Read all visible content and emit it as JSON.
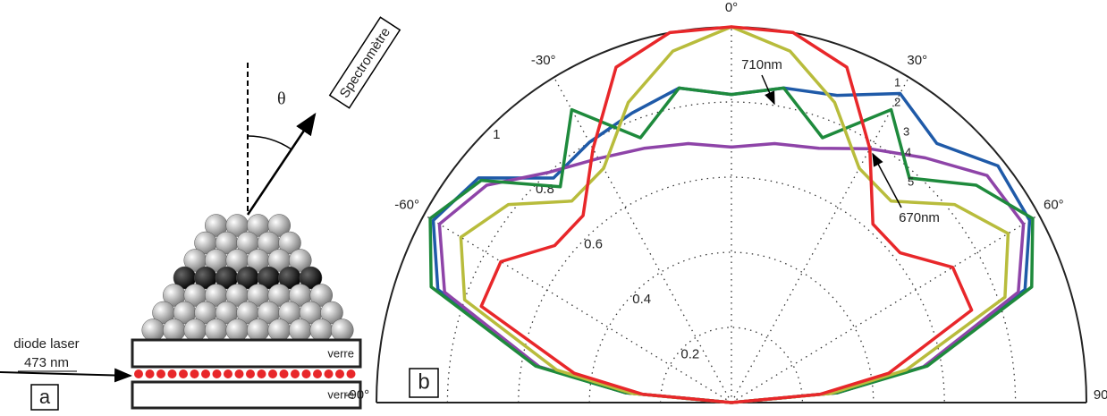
{
  "diagram": {
    "detector": "Spectromètre",
    "angle": "θ",
    "source": "diode laser",
    "wavelength": "473 nm",
    "glass_top": "verre",
    "glass_bottom": "verre",
    "panel": "a"
  },
  "chart_data": {
    "type": "polar_line",
    "panel": "b",
    "x": [
      -90,
      -85,
      -80,
      -70,
      -60,
      -50,
      -40,
      -30,
      -20,
      -10,
      0,
      10,
      20,
      30,
      40,
      50,
      60,
      70,
      80,
      85,
      90
    ],
    "thetalim": [
      -90,
      90
    ],
    "rlim": [
      0,
      1
    ],
    "thetaticks": [
      {
        "value": -90,
        "label": "-90°"
      },
      {
        "value": -60,
        "label": "-60°"
      },
      {
        "value": -30,
        "label": "-30°"
      },
      {
        "value": 0,
        "label": "0°"
      },
      {
        "value": 30,
        "label": "30°"
      },
      {
        "value": 60,
        "label": "60°"
      },
      {
        "value": 90,
        "label": "90°"
      }
    ],
    "rticks": [
      0.2,
      0.4,
      0.6,
      0.8,
      1
    ],
    "series": [
      {
        "name": "1",
        "color": "#1f5aa8",
        "values": [
          0,
          0.3,
          0.55,
          0.88,
          0.97,
          0.93,
          0.78,
          0.8,
          0.82,
          0.85,
          0.82,
          0.85,
          0.87,
          0.95,
          0.9,
          0.98,
          0.97,
          0.88,
          0.55,
          0.3,
          0
        ]
      },
      {
        "name": "2",
        "color": "#8e44a8",
        "values": [
          0,
          0.3,
          0.55,
          0.86,
          0.95,
          0.9,
          0.8,
          0.75,
          0.72,
          0.7,
          0.68,
          0.7,
          0.72,
          0.78,
          0.85,
          0.94,
          0.95,
          0.86,
          0.55,
          0.3,
          0
        ]
      },
      {
        "name": "3",
        "color": "#1e8a3c",
        "values": [
          0,
          0.3,
          0.56,
          0.9,
          0.98,
          0.92,
          0.75,
          0.9,
          0.75,
          0.85,
          0.82,
          0.85,
          0.75,
          0.9,
          0.78,
          0.9,
          0.98,
          0.9,
          0.56,
          0.3,
          0
        ]
      },
      {
        "name": "4",
        "color": "#b8bc3c",
        "values": [
          0,
          0.28,
          0.5,
          0.8,
          0.88,
          0.82,
          0.7,
          0.72,
          0.85,
          0.95,
          1.0,
          0.95,
          0.85,
          0.72,
          0.7,
          0.82,
          0.9,
          0.82,
          0.5,
          0.28,
          0
        ]
      },
      {
        "name": "5",
        "color": "#e8272a",
        "values": [
          0,
          0.25,
          0.45,
          0.75,
          0.75,
          0.65,
          0.65,
          0.78,
          0.95,
          1.0,
          1.0,
          1.0,
          0.95,
          0.78,
          0.62,
          0.62,
          0.72,
          0.72,
          0.45,
          0.25,
          0
        ]
      }
    ],
    "annotations": [
      "710nm",
      "670nm"
    ]
  }
}
